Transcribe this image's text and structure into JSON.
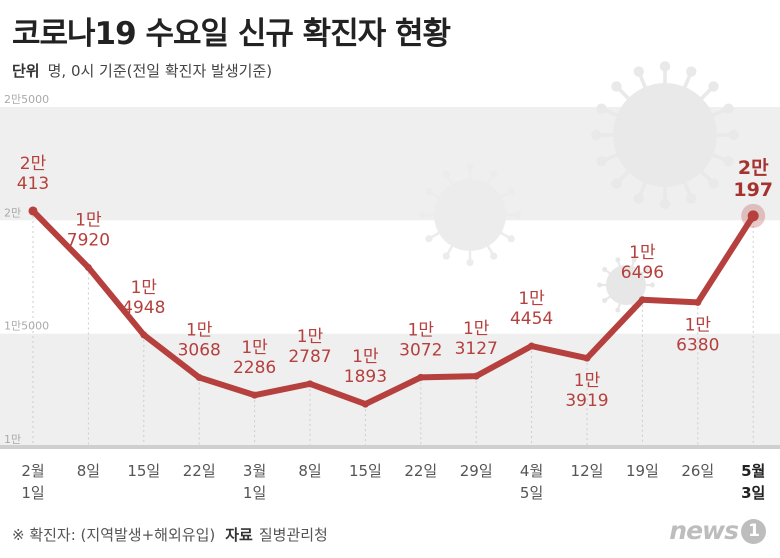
{
  "header": {
    "title": "코로나19 수요일 신규 확진자 현황",
    "unit_label": "단위",
    "unit_text": "명, 0시 기준(전일 확진자 발생기준)"
  },
  "footer": {
    "note": "※ 확진자: (지역발생+해외유입)",
    "source_label": "자료",
    "source_text": "질병관리청",
    "logo_text": "news",
    "logo_num": "1"
  },
  "colors": {
    "line": "#b5403d",
    "label": "#b5403d",
    "band": "#efefef",
    "accent_text": "#a5322f"
  },
  "chart_data": {
    "type": "line",
    "title": "코로나19 수요일 신규 확진자 현황",
    "xlabel": "",
    "ylabel": "명",
    "ylim": [
      10000,
      25000
    ],
    "grid": false,
    "yticks": [
      {
        "value": 25000,
        "label": "2만5000"
      },
      {
        "value": 20000,
        "label": "2만"
      },
      {
        "value": 15000,
        "label": "1만5000"
      },
      {
        "value": 10000,
        "label": "1만"
      }
    ],
    "categories": [
      [
        "2월",
        "1일"
      ],
      [
        "8일"
      ],
      [
        "15일"
      ],
      [
        "22일"
      ],
      [
        "3월",
        "1일"
      ],
      [
        "8일"
      ],
      [
        "15일"
      ],
      [
        "22일"
      ],
      [
        "29일"
      ],
      [
        "4월",
        "5일"
      ],
      [
        "12일"
      ],
      [
        "19일"
      ],
      [
        "26일"
      ],
      [
        "5월",
        "3일"
      ]
    ],
    "values": [
      20413,
      17920,
      14948,
      13068,
      12286,
      12787,
      11893,
      13072,
      13127,
      14454,
      13919,
      16496,
      16380,
      20197
    ],
    "value_labels": [
      [
        "2만",
        "413"
      ],
      [
        "1만",
        "7920"
      ],
      [
        "1만",
        "4948"
      ],
      [
        "1만",
        "3068"
      ],
      [
        "1만",
        "2286"
      ],
      [
        "1만",
        "2787"
      ],
      [
        "1만",
        "1893"
      ],
      [
        "1만",
        "3072"
      ],
      [
        "1만",
        "3127"
      ],
      [
        "1만",
        "4454"
      ],
      [
        "1만",
        "3919"
      ],
      [
        "1만",
        "6496"
      ],
      [
        "1만",
        "6380"
      ],
      [
        "2만",
        "197"
      ]
    ],
    "label_placement": [
      "above",
      "above",
      "above",
      "above",
      "above",
      "above",
      "above",
      "above",
      "above",
      "above",
      "below",
      "above",
      "below",
      "above"
    ],
    "highlight_index": 13
  }
}
